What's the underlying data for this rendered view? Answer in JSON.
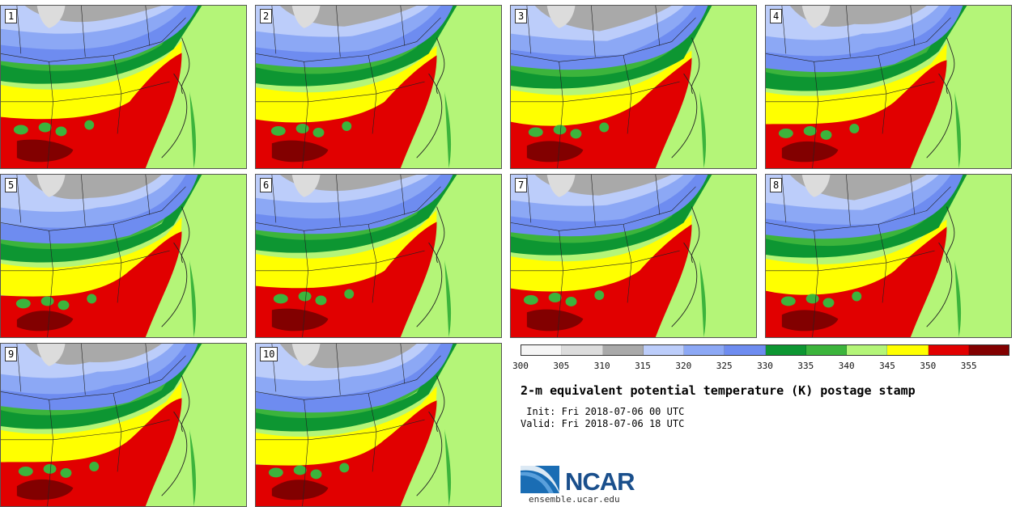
{
  "panels": [
    {
      "label": "1"
    },
    {
      "label": "2"
    },
    {
      "label": "3"
    },
    {
      "label": "4"
    },
    {
      "label": "5"
    },
    {
      "label": "6"
    },
    {
      "label": "7"
    },
    {
      "label": "8"
    },
    {
      "label": "9"
    },
    {
      "label": "10"
    }
  ],
  "colorbar": {
    "colors": [
      "#f5f5f5",
      "#dcdcdc",
      "#a9a9a9",
      "#bccdfa",
      "#8ca8f5",
      "#6e8cf0",
      "#0d9632",
      "#3cb43c",
      "#b4f578",
      "#ffff00",
      "#e10000",
      "#820000"
    ],
    "ticks": [
      "300",
      "305",
      "310",
      "315",
      "320",
      "325",
      "330",
      "335",
      "340",
      "345",
      "350",
      "355"
    ]
  },
  "title": "2-m equivalent potential temperature (K) postage stamp",
  "init": " Init: Fri 2018-07-06 00 UTC",
  "valid": "Valid: Fri 2018-07-06 18 UTC",
  "logo_text": "NCAR",
  "url": "ensemble.ucar.edu"
}
